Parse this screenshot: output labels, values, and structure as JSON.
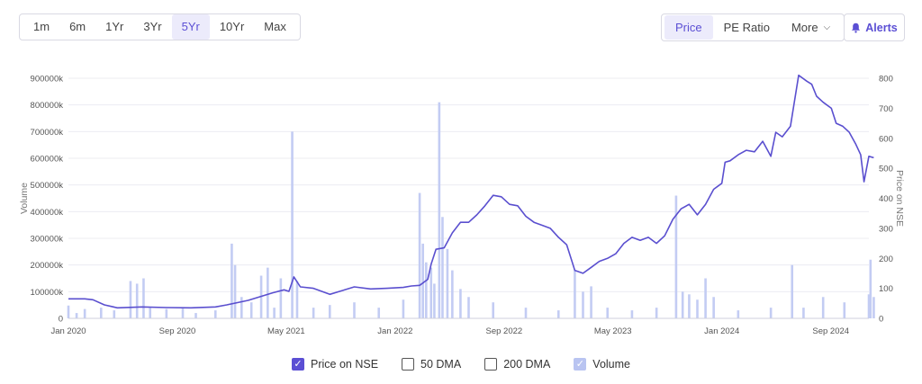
{
  "range_buttons": [
    {
      "label": "1m",
      "active": false
    },
    {
      "label": "6m",
      "active": false
    },
    {
      "label": "1Yr",
      "active": false
    },
    {
      "label": "3Yr",
      "active": false
    },
    {
      "label": "5Yr",
      "active": true
    },
    {
      "label": "10Yr",
      "active": false
    },
    {
      "label": "Max",
      "active": false
    }
  ],
  "metric_buttons": {
    "price": "Price",
    "pe_ratio": "PE Ratio",
    "more": "More"
  },
  "alerts_label": "Alerts",
  "colors": {
    "accent": "#5b4fd4",
    "price_line": "#5a4fcf",
    "volume_bar": "#c3ccf3"
  },
  "legend": {
    "price": "Price on NSE",
    "dma50": "50 DMA",
    "dma200": "200 DMA",
    "volume": "Volume"
  },
  "chart_data": {
    "type": "line",
    "left_axis_label": "Volume",
    "right_axis_label": "Price on NSE",
    "left_ticks": [
      "0",
      "100000k",
      "200000k",
      "300000k",
      "400000k",
      "500000k",
      "600000k",
      "700000k",
      "800000k",
      "900000k"
    ],
    "right_ticks": [
      "0",
      "100",
      "200",
      "300",
      "400",
      "500",
      "600",
      "700",
      "800"
    ],
    "volume_range": [
      0,
      900000
    ],
    "price_range": [
      0,
      800
    ],
    "x_range": [
      2020.0,
      2024.9
    ],
    "x_ticks": [
      {
        "label": "Jan 2020",
        "x": 2020.0
      },
      {
        "label": "Sep 2020",
        "x": 2020.667
      },
      {
        "label": "May 2021",
        "x": 2021.333
      },
      {
        "label": "Jan 2022",
        "x": 2022.0
      },
      {
        "label": "Sep 2022",
        "x": 2022.667
      },
      {
        "label": "May 2023",
        "x": 2023.333
      },
      {
        "label": "Jan 2024",
        "x": 2024.0
      },
      {
        "label": "Sep 2024",
        "x": 2024.667
      }
    ],
    "series": [
      {
        "name": "Price on NSE",
        "points": [
          [
            2020.0,
            65
          ],
          [
            2020.1,
            65
          ],
          [
            2020.15,
            62
          ],
          [
            2020.22,
            45
          ],
          [
            2020.3,
            35
          ],
          [
            2020.45,
            38
          ],
          [
            2020.6,
            36
          ],
          [
            2020.75,
            35
          ],
          [
            2020.9,
            38
          ],
          [
            2020.97,
            45
          ],
          [
            2021.1,
            60
          ],
          [
            2021.25,
            85
          ],
          [
            2021.32,
            95
          ],
          [
            2021.35,
            90
          ],
          [
            2021.38,
            138
          ],
          [
            2021.42,
            105
          ],
          [
            2021.5,
            100
          ],
          [
            2021.6,
            80
          ],
          [
            2021.66,
            90
          ],
          [
            2021.75,
            105
          ],
          [
            2021.85,
            98
          ],
          [
            2021.95,
            100
          ],
          [
            2022.05,
            103
          ],
          [
            2022.1,
            108
          ],
          [
            2022.15,
            110
          ],
          [
            2022.2,
            130
          ],
          [
            2022.22,
            180
          ],
          [
            2022.25,
            230
          ],
          [
            2022.3,
            235
          ],
          [
            2022.35,
            285
          ],
          [
            2022.4,
            320
          ],
          [
            2022.45,
            320
          ],
          [
            2022.5,
            345
          ],
          [
            2022.55,
            375
          ],
          [
            2022.6,
            410
          ],
          [
            2022.65,
            405
          ],
          [
            2022.7,
            380
          ],
          [
            2022.75,
            375
          ],
          [
            2022.8,
            340
          ],
          [
            2022.85,
            320
          ],
          [
            2022.9,
            310
          ],
          [
            2022.95,
            300
          ],
          [
            2023.0,
            270
          ],
          [
            2023.05,
            245
          ],
          [
            2023.1,
            160
          ],
          [
            2023.15,
            150
          ],
          [
            2023.2,
            170
          ],
          [
            2023.25,
            190
          ],
          [
            2023.3,
            200
          ],
          [
            2023.35,
            215
          ],
          [
            2023.4,
            250
          ],
          [
            2023.45,
            270
          ],
          [
            2023.5,
            260
          ],
          [
            2023.55,
            270
          ],
          [
            2023.6,
            250
          ],
          [
            2023.65,
            275
          ],
          [
            2023.7,
            330
          ],
          [
            2023.75,
            365
          ],
          [
            2023.8,
            380
          ],
          [
            2023.85,
            345
          ],
          [
            2023.9,
            380
          ],
          [
            2023.95,
            430
          ],
          [
            2024.0,
            450
          ],
          [
            2024.02,
            520
          ],
          [
            2024.05,
            525
          ],
          [
            2024.1,
            545
          ],
          [
            2024.15,
            560
          ],
          [
            2024.2,
            555
          ],
          [
            2024.25,
            590
          ],
          [
            2024.3,
            540
          ],
          [
            2024.33,
            620
          ],
          [
            2024.37,
            605
          ],
          [
            2024.42,
            640
          ],
          [
            2024.47,
            810
          ],
          [
            2024.52,
            790
          ],
          [
            2024.55,
            780
          ],
          [
            2024.58,
            740
          ],
          [
            2024.62,
            720
          ],
          [
            2024.67,
            700
          ],
          [
            2024.7,
            650
          ],
          [
            2024.74,
            640
          ],
          [
            2024.78,
            620
          ],
          [
            2024.82,
            580
          ],
          [
            2024.85,
            545
          ],
          [
            2024.87,
            455
          ],
          [
            2024.9,
            540
          ],
          [
            2024.93,
            535
          ]
        ]
      },
      {
        "name": "Volume",
        "values_x": [
          [
            2020.0,
            48000
          ],
          [
            2020.05,
            20000
          ],
          [
            2020.1,
            35000
          ],
          [
            2020.2,
            40000
          ],
          [
            2020.28,
            30000
          ],
          [
            2020.38,
            140000
          ],
          [
            2020.42,
            130000
          ],
          [
            2020.46,
            150000
          ],
          [
            2020.5,
            40000
          ],
          [
            2020.6,
            35000
          ],
          [
            2020.7,
            40000
          ],
          [
            2020.78,
            20000
          ],
          [
            2020.9,
            30000
          ],
          [
            2021.0,
            280000
          ],
          [
            2021.02,
            200000
          ],
          [
            2021.06,
            80000
          ],
          [
            2021.12,
            60000
          ],
          [
            2021.18,
            160000
          ],
          [
            2021.22,
            190000
          ],
          [
            2021.26,
            40000
          ],
          [
            2021.3,
            150000
          ],
          [
            2021.37,
            700000
          ],
          [
            2021.4,
            140000
          ],
          [
            2021.5,
            40000
          ],
          [
            2021.6,
            50000
          ],
          [
            2021.75,
            60000
          ],
          [
            2021.9,
            40000
          ],
          [
            2022.05,
            70000
          ],
          [
            2022.15,
            470000
          ],
          [
            2022.17,
            280000
          ],
          [
            2022.19,
            210000
          ],
          [
            2022.22,
            190000
          ],
          [
            2022.24,
            130000
          ],
          [
            2022.27,
            810000
          ],
          [
            2022.29,
            380000
          ],
          [
            2022.32,
            260000
          ],
          [
            2022.35,
            180000
          ],
          [
            2022.4,
            110000
          ],
          [
            2022.45,
            80000
          ],
          [
            2022.6,
            60000
          ],
          [
            2022.8,
            40000
          ],
          [
            2023.0,
            30000
          ],
          [
            2023.1,
            180000
          ],
          [
            2023.15,
            100000
          ],
          [
            2023.2,
            120000
          ],
          [
            2023.3,
            40000
          ],
          [
            2023.45,
            30000
          ],
          [
            2023.6,
            40000
          ],
          [
            2023.72,
            460000
          ],
          [
            2023.76,
            100000
          ],
          [
            2023.8,
            90000
          ],
          [
            2023.85,
            70000
          ],
          [
            2023.9,
            150000
          ],
          [
            2023.95,
            80000
          ],
          [
            2024.1,
            30000
          ],
          [
            2024.3,
            40000
          ],
          [
            2024.43,
            200000
          ],
          [
            2024.5,
            40000
          ],
          [
            2024.62,
            80000
          ],
          [
            2024.75,
            60000
          ],
          [
            2024.9,
            90000
          ],
          [
            2024.91,
            220000
          ],
          [
            2024.93,
            80000
          ]
        ]
      }
    ]
  }
}
